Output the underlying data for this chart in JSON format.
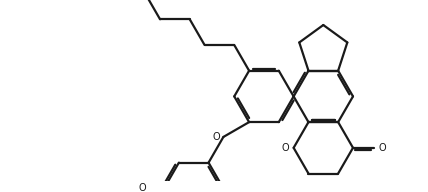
{
  "background_color": "#ffffff",
  "line_color": "#1a1a1a",
  "line_width": 1.6,
  "figsize": [
    4.28,
    1.92
  ],
  "dpi": 100,
  "xlim": [
    0,
    4.28
  ],
  "ylim": [
    0,
    1.92
  ]
}
